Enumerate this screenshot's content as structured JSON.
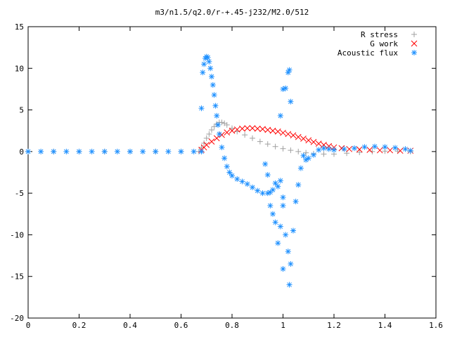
{
  "chart_data": {
    "type": "scatter",
    "title": "m3/n1.5/q2.0/r-+.45-j232/M2.0/512",
    "xlabel": "",
    "ylabel": "",
    "xlim": [
      0,
      1.6
    ],
    "ylim": [
      -20,
      15
    ],
    "xticks": [
      0,
      0.2,
      0.4,
      0.6,
      0.8,
      1,
      1.2,
      1.4,
      1.6
    ],
    "yticks": [
      -20,
      -15,
      -10,
      -5,
      0,
      5,
      10,
      15
    ],
    "xtick_labels": [
      "0",
      "0.2",
      "0.4",
      "0.6",
      "0.8",
      "1",
      "1.2",
      "1.4",
      "1.6"
    ],
    "ytick_labels": [
      "-20",
      "-15",
      "-10",
      "-5",
      "0",
      "5",
      "10",
      "15"
    ],
    "grid": false,
    "legend_position": "top-right",
    "series": [
      {
        "name": "R stress",
        "marker": "plus",
        "color": "#a0a0a0",
        "points": [
          [
            0.0,
            0.0
          ],
          [
            0.1,
            0.0
          ],
          [
            0.2,
            0.0
          ],
          [
            0.3,
            0.0
          ],
          [
            0.4,
            0.0
          ],
          [
            0.5,
            0.0
          ],
          [
            0.6,
            0.0
          ],
          [
            0.67,
            0.0
          ],
          [
            0.68,
            0.5
          ],
          [
            0.69,
            1.0
          ],
          [
            0.7,
            1.6
          ],
          [
            0.71,
            2.1
          ],
          [
            0.72,
            2.6
          ],
          [
            0.73,
            3.0
          ],
          [
            0.74,
            3.3
          ],
          [
            0.75,
            3.5
          ],
          [
            0.76,
            3.5
          ],
          [
            0.77,
            3.4
          ],
          [
            0.78,
            3.2
          ],
          [
            0.8,
            2.8
          ],
          [
            0.82,
            2.4
          ],
          [
            0.85,
            2.0
          ],
          [
            0.88,
            1.6
          ],
          [
            0.91,
            1.2
          ],
          [
            0.94,
            0.9
          ],
          [
            0.97,
            0.6
          ],
          [
            1.0,
            0.35
          ],
          [
            1.03,
            0.15
          ],
          [
            1.06,
            0.0
          ],
          [
            1.09,
            -0.15
          ],
          [
            1.12,
            -0.25
          ],
          [
            1.16,
            -0.3
          ],
          [
            1.2,
            -0.3
          ],
          [
            1.25,
            -0.2
          ],
          [
            1.3,
            -0.1
          ],
          [
            1.35,
            0.0
          ],
          [
            1.4,
            0.05
          ],
          [
            1.45,
            0.05
          ],
          [
            1.5,
            0.0
          ]
        ]
      },
      {
        "name": "G work",
        "marker": "cross",
        "color": "#ff0000",
        "points": [
          [
            0.68,
            0.2
          ],
          [
            0.69,
            0.5
          ],
          [
            0.7,
            0.8
          ],
          [
            0.72,
            1.2
          ],
          [
            0.74,
            1.6
          ],
          [
            0.76,
            2.0
          ],
          [
            0.78,
            2.3
          ],
          [
            0.8,
            2.5
          ],
          [
            0.82,
            2.65
          ],
          [
            0.84,
            2.75
          ],
          [
            0.86,
            2.8
          ],
          [
            0.88,
            2.8
          ],
          [
            0.9,
            2.75
          ],
          [
            0.92,
            2.7
          ],
          [
            0.94,
            2.6
          ],
          [
            0.96,
            2.5
          ],
          [
            0.98,
            2.4
          ],
          [
            1.0,
            2.25
          ],
          [
            1.02,
            2.1
          ],
          [
            1.04,
            1.95
          ],
          [
            1.06,
            1.75
          ],
          [
            1.08,
            1.55
          ],
          [
            1.1,
            1.35
          ],
          [
            1.12,
            1.15
          ],
          [
            1.14,
            0.95
          ],
          [
            1.16,
            0.8
          ],
          [
            1.18,
            0.65
          ],
          [
            1.2,
            0.5
          ],
          [
            1.23,
            0.4
          ],
          [
            1.26,
            0.3
          ],
          [
            1.3,
            0.25
          ],
          [
            1.34,
            0.2
          ],
          [
            1.38,
            0.15
          ],
          [
            1.42,
            0.15
          ],
          [
            1.46,
            0.1
          ],
          [
            1.5,
            0.1
          ]
        ]
      },
      {
        "name": "Acoustic flux",
        "marker": "star",
        "color": "#1e90ff",
        "points": [
          [
            0.0,
            0.0
          ],
          [
            0.05,
            0.0
          ],
          [
            0.1,
            0.0
          ],
          [
            0.15,
            0.0
          ],
          [
            0.2,
            0.0
          ],
          [
            0.25,
            0.0
          ],
          [
            0.3,
            0.0
          ],
          [
            0.35,
            0.0
          ],
          [
            0.4,
            0.0
          ],
          [
            0.45,
            0.0
          ],
          [
            0.5,
            0.0
          ],
          [
            0.55,
            0.0
          ],
          [
            0.6,
            0.0
          ],
          [
            0.65,
            0.0
          ],
          [
            0.68,
            0.0
          ],
          [
            0.68,
            5.2
          ],
          [
            0.685,
            9.5
          ],
          [
            0.69,
            10.5
          ],
          [
            0.695,
            11.2
          ],
          [
            0.7,
            11.4
          ],
          [
            0.705,
            11.3
          ],
          [
            0.71,
            10.8
          ],
          [
            0.715,
            10.0
          ],
          [
            0.72,
            9.0
          ],
          [
            0.725,
            8.0
          ],
          [
            0.73,
            6.8
          ],
          [
            0.735,
            5.5
          ],
          [
            0.74,
            4.3
          ],
          [
            0.745,
            3.2
          ],
          [
            0.75,
            2.1
          ],
          [
            0.76,
            0.5
          ],
          [
            0.77,
            -0.8
          ],
          [
            0.78,
            -1.8
          ],
          [
            0.79,
            -2.5
          ],
          [
            0.8,
            -2.9
          ],
          [
            0.82,
            -3.3
          ],
          [
            0.84,
            -3.6
          ],
          [
            0.86,
            -3.9
          ],
          [
            0.88,
            -4.3
          ],
          [
            0.9,
            -4.7
          ],
          [
            0.92,
            -5.0
          ],
          [
            0.94,
            -5.0
          ],
          [
            0.95,
            -4.9
          ],
          [
            0.96,
            -4.6
          ],
          [
            0.97,
            -3.8
          ],
          [
            0.98,
            -4.2
          ],
          [
            0.99,
            -3.5
          ],
          [
            0.93,
            -1.5
          ],
          [
            0.94,
            -2.8
          ],
          [
            0.95,
            -6.5
          ],
          [
            0.96,
            -7.5
          ],
          [
            0.97,
            -8.5
          ],
          [
            0.98,
            -11.0
          ],
          [
            0.99,
            -9.0
          ],
          [
            0.99,
            4.3
          ],
          [
            1.0,
            7.5
          ],
          [
            1.01,
            7.6
          ],
          [
            1.02,
            9.5
          ],
          [
            1.025,
            9.8
          ],
          [
            1.03,
            6.0
          ],
          [
            1.0,
            -5.5
          ],
          [
            1.0,
            -6.5
          ],
          [
            1.0,
            -14.1
          ],
          [
            1.01,
            -10.0
          ],
          [
            1.02,
            -12.0
          ],
          [
            1.025,
            -16.0
          ],
          [
            1.03,
            -13.5
          ],
          [
            1.04,
            -9.5
          ],
          [
            1.05,
            -6.0
          ],
          [
            1.06,
            -4.0
          ],
          [
            1.07,
            -2.0
          ],
          [
            1.08,
            -0.5
          ],
          [
            1.09,
            -1.0
          ],
          [
            1.1,
            -0.8
          ],
          [
            1.12,
            -0.4
          ],
          [
            1.14,
            0.2
          ],
          [
            1.16,
            0.4
          ],
          [
            1.18,
            0.3
          ],
          [
            1.2,
            0.2
          ],
          [
            1.24,
            0.3
          ],
          [
            1.28,
            0.4
          ],
          [
            1.32,
            0.55
          ],
          [
            1.36,
            0.6
          ],
          [
            1.4,
            0.55
          ],
          [
            1.44,
            0.45
          ],
          [
            1.48,
            0.3
          ],
          [
            1.5,
            0.1
          ]
        ]
      }
    ]
  }
}
